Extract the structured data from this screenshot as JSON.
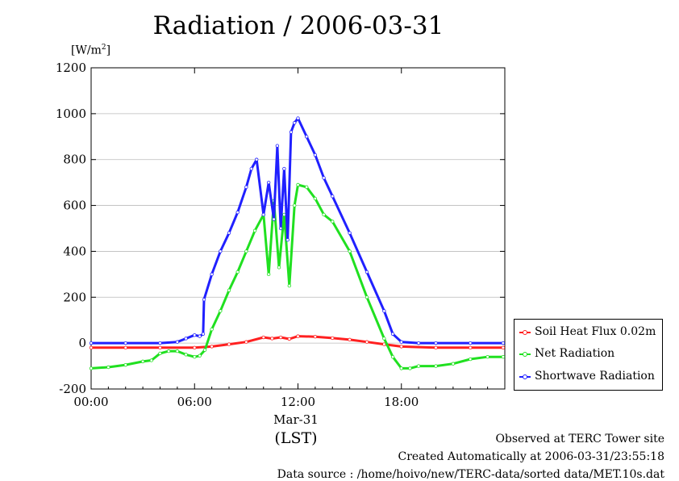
{
  "chart_data": {
    "type": "line",
    "title": "Radiation / 2006-03-31",
    "ylabel_main": "[W/m",
    "ylabel_sup": "2",
    "ylabel_close": "]",
    "xlabel": "(LST)",
    "xlabel_date": "Mar-31",
    "xlim": [
      0,
      24
    ],
    "ylim": [
      -200,
      1200
    ],
    "yticks": [
      -200,
      0,
      200,
      400,
      600,
      800,
      1000,
      1200
    ],
    "xticks": [
      {
        "value": 0,
        "label": "00:00"
      },
      {
        "value": 6,
        "label": "06:00"
      },
      {
        "value": 12,
        "label": "12:00"
      },
      {
        "value": 18,
        "label": "18:00"
      }
    ],
    "legend_position": "right",
    "series": [
      {
        "name": "Soil Heat Flux 0.02m",
        "color": "#ff2020",
        "x": [
          0,
          2,
          4,
          6,
          7,
          8,
          9,
          10,
          10.5,
          11,
          11.5,
          12,
          13,
          14,
          15,
          16,
          17,
          18,
          20,
          22,
          23.9
        ],
        "y": [
          -20,
          -20,
          -20,
          -20,
          -15,
          -5,
          5,
          25,
          20,
          25,
          18,
          30,
          28,
          22,
          15,
          5,
          -5,
          -15,
          -20,
          -20,
          -20
        ]
      },
      {
        "name": "Net Radiation",
        "color": "#20e020",
        "x": [
          0,
          1,
          2,
          3,
          3.5,
          4,
          4.5,
          5,
          5.5,
          6,
          6.3,
          6.6,
          7,
          7.5,
          8,
          8.5,
          9,
          9.5,
          10,
          10.3,
          10.6,
          10.9,
          11.2,
          11.5,
          11.8,
          12,
          12.5,
          13,
          13.5,
          14,
          15,
          16,
          17,
          17.5,
          18,
          18.5,
          19,
          20,
          21,
          22,
          23,
          23.9
        ],
        "y": [
          -110,
          -105,
          -95,
          -80,
          -75,
          -45,
          -35,
          -35,
          -50,
          -60,
          -55,
          -30,
          60,
          140,
          230,
          310,
          400,
          490,
          560,
          300,
          620,
          330,
          560,
          250,
          600,
          690,
          680,
          630,
          560,
          530,
          400,
          200,
          20,
          -60,
          -110,
          -110,
          -100,
          -100,
          -90,
          -70,
          -60,
          -60
        ]
      },
      {
        "name": "Shortwave Radiation",
        "color": "#2020ff",
        "x": [
          0,
          2,
          4,
          5,
          5.5,
          6,
          6.3,
          6.5,
          6.55,
          7,
          7.5,
          8,
          8.5,
          9,
          9.3,
          9.6,
          10,
          10.3,
          10.6,
          10.8,
          11,
          11.2,
          11.4,
          11.6,
          11.8,
          12,
          12.5,
          13,
          13.5,
          14,
          15,
          16,
          17,
          17.5,
          18,
          19,
          20,
          22,
          23.9
        ],
        "y": [
          0,
          0,
          0,
          5,
          20,
          35,
          30,
          40,
          190,
          300,
          400,
          480,
          570,
          680,
          760,
          800,
          560,
          700,
          540,
          860,
          500,
          760,
          450,
          920,
          960,
          980,
          900,
          820,
          720,
          640,
          480,
          310,
          140,
          40,
          5,
          0,
          0,
          0,
          0
        ]
      }
    ]
  },
  "footer": {
    "line1": "Observed at TERC Tower site",
    "line2": "Created Automatically at 2006-03-31/23:55:18",
    "line3": "Data source : /home/hoivo/new/TERC-data/sorted  data/MET.10s.dat"
  }
}
